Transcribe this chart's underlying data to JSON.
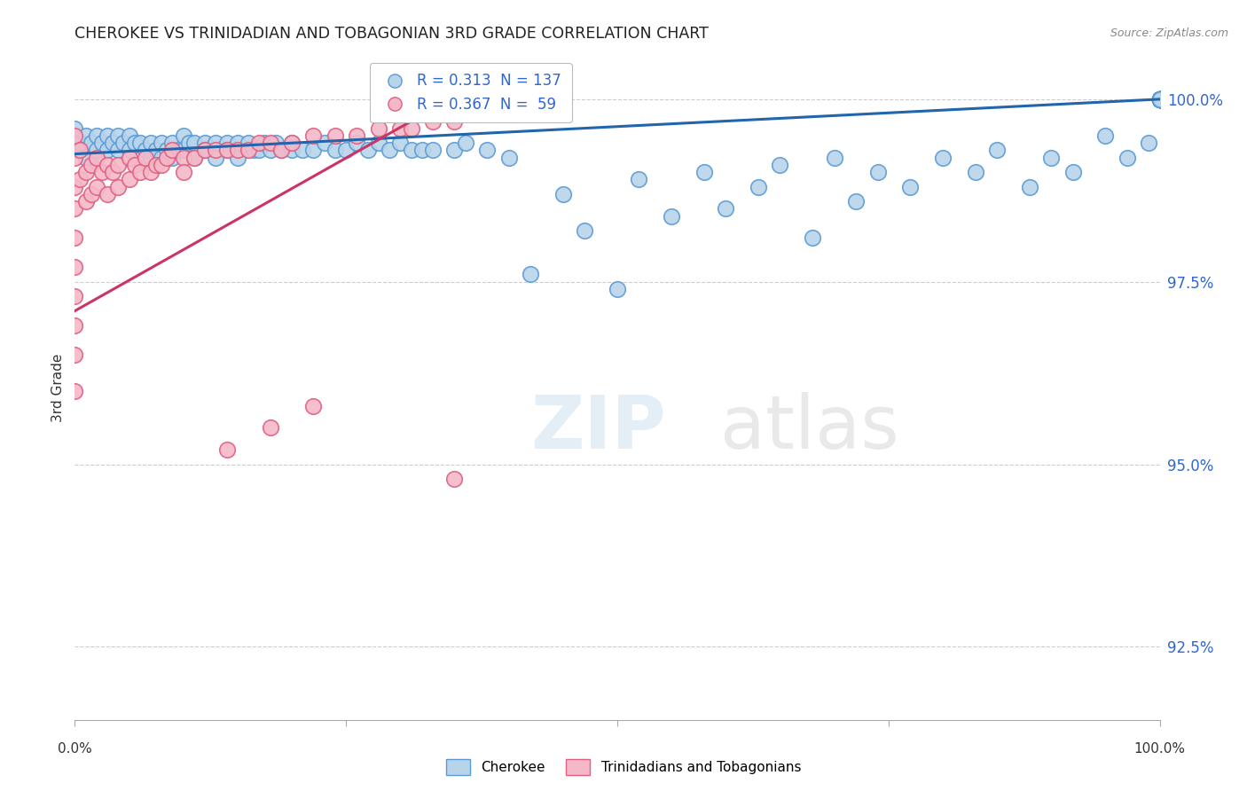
{
  "title": "CHEROKEE VS TRINIDADIAN AND TOBAGONIAN 3RD GRADE CORRELATION CHART",
  "source": "Source: ZipAtlas.com",
  "ylabel": "3rd Grade",
  "yticks": [
    92.5,
    95.0,
    97.5,
    100.0
  ],
  "ytick_labels": [
    "92.5%",
    "95.0%",
    "97.5%",
    "100.0%"
  ],
  "legend_label_cherokee": "Cherokee",
  "legend_label_trinidadian": "Trinidadians and Tobagonians",
  "cherokee_color": "#b8d4ea",
  "cherokee_edge": "#5b9bd5",
  "trinidadian_color": "#f5b8c8",
  "trinidadian_edge": "#e06080",
  "blue_line_color": "#2166ac",
  "pink_line_color": "#cc3366",
  "background_color": "#ffffff",
  "grid_color": "#cccccc",
  "xmin": 0.0,
  "xmax": 1.0,
  "ymin": 91.5,
  "ymax": 100.6,
  "blue_line_x": [
    0.0,
    1.0
  ],
  "blue_line_y": [
    99.25,
    100.0
  ],
  "pink_line_x": [
    0.0,
    0.37
  ],
  "pink_line_y": [
    97.1,
    100.2
  ],
  "cherokee_x": [
    0.0,
    0.0,
    0.005,
    0.01,
    0.01,
    0.015,
    0.02,
    0.02,
    0.025,
    0.03,
    0.03,
    0.035,
    0.04,
    0.04,
    0.045,
    0.05,
    0.05,
    0.055,
    0.06,
    0.065,
    0.07,
    0.07,
    0.075,
    0.08,
    0.08,
    0.085,
    0.09,
    0.09,
    0.095,
    0.1,
    0.1,
    0.105,
    0.11,
    0.11,
    0.12,
    0.12,
    0.13,
    0.13,
    0.14,
    0.14,
    0.15,
    0.15,
    0.16,
    0.165,
    0.17,
    0.175,
    0.18,
    0.185,
    0.19,
    0.2,
    0.2,
    0.21,
    0.22,
    0.23,
    0.24,
    0.25,
    0.26,
    0.27,
    0.28,
    0.29,
    0.3,
    0.31,
    0.32,
    0.33,
    0.35,
    0.36,
    0.38,
    0.4,
    0.42,
    0.45,
    0.47,
    0.5,
    0.52,
    0.55,
    0.58,
    0.6,
    0.63,
    0.65,
    0.68,
    0.7,
    0.72,
    0.74,
    0.77,
    0.8,
    0.83,
    0.85,
    0.88,
    0.9,
    0.92,
    0.95,
    0.97,
    0.99,
    1.0,
    1.0,
    1.0,
    1.0,
    1.0,
    1.0,
    1.0,
    1.0,
    1.0,
    1.0,
    1.0,
    1.0,
    1.0,
    1.0,
    1.0,
    1.0,
    1.0,
    1.0,
    1.0,
    1.0,
    1.0,
    1.0,
    1.0,
    1.0,
    1.0,
    1.0,
    1.0,
    1.0,
    1.0,
    1.0,
    1.0,
    1.0,
    1.0,
    1.0,
    1.0,
    1.0,
    1.0,
    1.0,
    1.0,
    1.0,
    1.0,
    1.0,
    1.0
  ],
  "cherokee_y": [
    99.6,
    99.3,
    99.4,
    99.5,
    99.2,
    99.4,
    99.5,
    99.3,
    99.4,
    99.5,
    99.3,
    99.4,
    99.5,
    99.3,
    99.4,
    99.5,
    99.3,
    99.4,
    99.4,
    99.3,
    99.4,
    99.2,
    99.3,
    99.4,
    99.2,
    99.3,
    99.4,
    99.2,
    99.3,
    99.5,
    99.3,
    99.4,
    99.4,
    99.2,
    99.4,
    99.3,
    99.4,
    99.2,
    99.4,
    99.3,
    99.4,
    99.2,
    99.4,
    99.3,
    99.3,
    99.4,
    99.3,
    99.4,
    99.3,
    99.4,
    99.3,
    99.3,
    99.3,
    99.4,
    99.3,
    99.3,
    99.4,
    99.3,
    99.4,
    99.3,
    99.4,
    99.3,
    99.3,
    99.3,
    99.3,
    99.4,
    99.3,
    99.2,
    97.6,
    98.7,
    98.2,
    97.4,
    98.9,
    98.4,
    99.0,
    98.5,
    98.8,
    99.1,
    98.1,
    99.2,
    98.6,
    99.0,
    98.8,
    99.2,
    99.0,
    99.3,
    98.8,
    99.2,
    99.0,
    99.5,
    99.2,
    99.4,
    100.0,
    100.0,
    100.0,
    100.0,
    100.0,
    100.0,
    100.0,
    100.0,
    100.0,
    100.0,
    100.0,
    100.0,
    100.0,
    100.0,
    100.0,
    100.0,
    100.0,
    100.0,
    100.0,
    100.0,
    100.0,
    100.0,
    100.0,
    100.0,
    100.0,
    100.0,
    100.0,
    100.0,
    100.0,
    100.0,
    100.0,
    100.0,
    100.0,
    100.0,
    100.0,
    100.0,
    100.0,
    100.0,
    100.0,
    100.0,
    100.0,
    100.0,
    100.0
  ],
  "trinidadian_x": [
    0.0,
    0.0,
    0.0,
    0.0,
    0.0,
    0.0,
    0.0,
    0.0,
    0.0,
    0.0,
    0.005,
    0.005,
    0.01,
    0.01,
    0.015,
    0.015,
    0.02,
    0.02,
    0.025,
    0.03,
    0.03,
    0.035,
    0.04,
    0.04,
    0.05,
    0.05,
    0.055,
    0.06,
    0.065,
    0.07,
    0.075,
    0.08,
    0.085,
    0.09,
    0.1,
    0.1,
    0.11,
    0.12,
    0.13,
    0.14,
    0.15,
    0.16,
    0.17,
    0.18,
    0.19,
    0.2,
    0.22,
    0.24,
    0.26,
    0.28,
    0.3,
    0.31,
    0.33,
    0.35,
    0.37,
    0.14,
    0.18,
    0.22,
    0.35
  ],
  "trinidadian_y": [
    99.5,
    99.2,
    98.8,
    98.5,
    98.1,
    97.7,
    97.3,
    96.9,
    96.5,
    96.0,
    99.3,
    98.9,
    99.0,
    98.6,
    99.1,
    98.7,
    99.2,
    98.8,
    99.0,
    99.1,
    98.7,
    99.0,
    99.1,
    98.8,
    99.2,
    98.9,
    99.1,
    99.0,
    99.2,
    99.0,
    99.1,
    99.1,
    99.2,
    99.3,
    99.2,
    99.0,
    99.2,
    99.3,
    99.3,
    99.3,
    99.3,
    99.3,
    99.4,
    99.4,
    99.3,
    99.4,
    99.5,
    99.5,
    99.5,
    99.6,
    99.6,
    99.6,
    99.7,
    99.7,
    99.8,
    95.2,
    95.5,
    95.8,
    94.8
  ]
}
